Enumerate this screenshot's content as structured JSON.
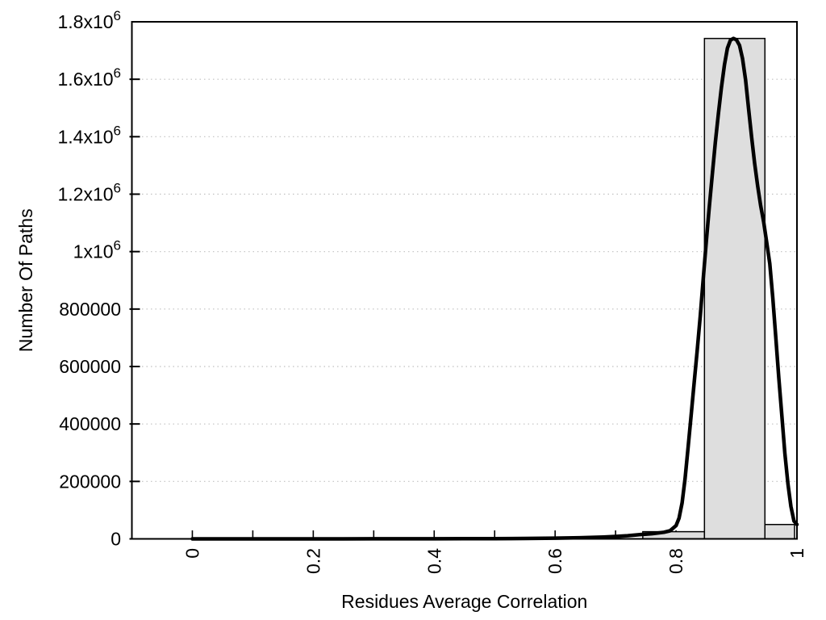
{
  "chart_data": {
    "type": "bar",
    "subtype": "histogram-with-fit-curve",
    "title": "",
    "xlabel": "Residues Average Correlation",
    "ylabel": "Number Of Paths",
    "xlim": [
      -0.1,
      1.0
    ],
    "ylim": [
      0,
      1800000
    ],
    "x_major_ticks": [
      0,
      0.2,
      0.4,
      0.6,
      0.8,
      1
    ],
    "x_major_tick_labels": [
      "0",
      "0.2",
      "0.4",
      "0.6",
      "0.8",
      "1"
    ],
    "x_minor_tick_step": 0.1,
    "x_tick_label_rotation": -90,
    "y_ticks": [
      0,
      200000,
      400000,
      600000,
      800000,
      1000000,
      1200000,
      1400000,
      1600000,
      1800000
    ],
    "y_tick_labels": [
      "0",
      "200000",
      "400000",
      "600000",
      "800000",
      "1x10^6",
      "1.2x10^6",
      "1.4x10^6",
      "1.6x10^6",
      "1.8x10^6"
    ],
    "grid": "horizontal-dotted",
    "legend": "none",
    "background_color": "#ffffff",
    "axis_color": "#000000",
    "grid_color": "#c0c0c0",
    "bar_fill": "#dedede",
    "bar_border": "#000000",
    "curve_color": "#000000",
    "bars": [
      {
        "x_start": 0.745,
        "x_end": 0.847,
        "value": 25000
      },
      {
        "x_start": 0.847,
        "x_end": 0.947,
        "value": 1742000
      },
      {
        "x_start": 0.947,
        "x_end": 0.996,
        "value": 50000
      }
    ],
    "curve_peak": {
      "x": 0.895,
      "value": 1742000
    },
    "curve": [
      [
        0,
        0
      ],
      [
        0.05,
        0
      ],
      [
        0.1,
        0
      ],
      [
        0.15,
        0
      ],
      [
        0.2,
        0
      ],
      [
        0.25,
        100
      ],
      [
        0.3,
        200
      ],
      [
        0.35,
        300
      ],
      [
        0.4,
        400
      ],
      [
        0.45,
        600
      ],
      [
        0.5,
        900
      ],
      [
        0.55,
        1500
      ],
      [
        0.6,
        2500
      ],
      [
        0.64,
        4000
      ],
      [
        0.68,
        6500
      ],
      [
        0.7,
        8500
      ],
      [
        0.72,
        11000
      ],
      [
        0.74,
        14500
      ],
      [
        0.76,
        18000
      ],
      [
        0.78,
        23000
      ],
      [
        0.79,
        28000
      ],
      [
        0.8,
        46000
      ],
      [
        0.805,
        72000
      ],
      [
        0.81,
        125000
      ],
      [
        0.815,
        210000
      ],
      [
        0.82,
        320000
      ],
      [
        0.825,
        430000
      ],
      [
        0.83,
        545000
      ],
      [
        0.835,
        655000
      ],
      [
        0.84,
        775000
      ],
      [
        0.845,
        905000
      ],
      [
        0.85,
        1035000
      ],
      [
        0.855,
        1155000
      ],
      [
        0.86,
        1270000
      ],
      [
        0.865,
        1380000
      ],
      [
        0.87,
        1480000
      ],
      [
        0.875,
        1570000
      ],
      [
        0.88,
        1650000
      ],
      [
        0.885,
        1708000
      ],
      [
        0.89,
        1736000
      ],
      [
        0.895,
        1742000
      ],
      [
        0.9,
        1737000
      ],
      [
        0.905,
        1718000
      ],
      [
        0.91,
        1672000
      ],
      [
        0.915,
        1598000
      ],
      [
        0.92,
        1498000
      ],
      [
        0.925,
        1398000
      ],
      [
        0.93,
        1308000
      ],
      [
        0.935,
        1228000
      ],
      [
        0.94,
        1160000
      ],
      [
        0.945,
        1102000
      ],
      [
        0.95,
        1032000
      ],
      [
        0.955,
        958000
      ],
      [
        0.96,
        840000
      ],
      [
        0.965,
        700000
      ],
      [
        0.97,
        560000
      ],
      [
        0.975,
        428000
      ],
      [
        0.98,
        298000
      ],
      [
        0.985,
        192000
      ],
      [
        0.99,
        113000
      ],
      [
        0.995,
        62000
      ],
      [
        1.0,
        50000
      ]
    ]
  }
}
